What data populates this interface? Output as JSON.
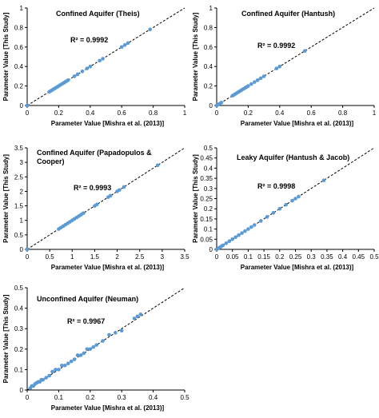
{
  "colors": {
    "marker": "#5b9bd5",
    "axis": "#000000",
    "line": "#000000"
  },
  "chart_data": [
    {
      "type": "scatter",
      "title": "Confined Aquifer (Theis)",
      "xlabel": "Parameter Value [Mishra et al. (2013)]",
      "ylabel": "Parameter Value [This Study]",
      "r2_label": "R² = 0.9992",
      "xlim": [
        0,
        1
      ],
      "ylim": [
        0,
        1
      ],
      "xticks": [
        "0",
        "0.2",
        "0.4",
        "0.6",
        "0.8",
        "1"
      ],
      "yticks": [
        "0",
        "0.2",
        "0.4",
        "0.6",
        "0.8",
        "1"
      ],
      "series": [
        {
          "x": [
            0.0,
            0.0,
            0.14,
            0.15,
            0.16,
            0.17,
            0.18,
            0.19,
            0.2,
            0.21,
            0.22,
            0.23,
            0.24,
            0.25,
            0.26,
            0.3,
            0.32,
            0.35,
            0.38,
            0.4,
            0.46,
            0.48,
            0.6,
            0.62,
            0.64,
            0.78
          ],
          "y": [
            0.0,
            0.0,
            0.14,
            0.15,
            0.16,
            0.17,
            0.18,
            0.19,
            0.2,
            0.21,
            0.22,
            0.23,
            0.24,
            0.25,
            0.26,
            0.3,
            0.32,
            0.35,
            0.38,
            0.4,
            0.46,
            0.48,
            0.6,
            0.62,
            0.64,
            0.78
          ]
        }
      ]
    },
    {
      "type": "scatter",
      "title": "Confined Aquifer (Hantush)",
      "xlabel": "Parameter Value [Mishra et al. (2013)]",
      "ylabel": "Parameter Value [This Study]",
      "r2_label": "R² = 0.9992",
      "xlim": [
        0,
        1
      ],
      "ylim": [
        0,
        1
      ],
      "xticks": [
        "0",
        "0.2",
        "0.4",
        "0.6",
        "0.8",
        "1"
      ],
      "yticks": [
        "0",
        "0.2",
        "0.4",
        "0.6",
        "0.8",
        "1"
      ],
      "series": [
        {
          "x": [
            0.0,
            0.01,
            0.02,
            0.03,
            0.1,
            0.11,
            0.12,
            0.13,
            0.14,
            0.15,
            0.16,
            0.17,
            0.18,
            0.19,
            0.2,
            0.22,
            0.24,
            0.26,
            0.28,
            0.3,
            0.38,
            0.4,
            0.56
          ],
          "y": [
            0.0,
            0.01,
            0.02,
            0.03,
            0.1,
            0.11,
            0.12,
            0.13,
            0.14,
            0.15,
            0.16,
            0.17,
            0.18,
            0.19,
            0.2,
            0.22,
            0.24,
            0.26,
            0.28,
            0.3,
            0.38,
            0.4,
            0.56
          ]
        }
      ]
    },
    {
      "type": "scatter",
      "title": "Confined Aquifer (Papadopulos & Cooper)",
      "xlabel": "Parameter Value [Mishra et al. (2013)]",
      "ylabel": "Parameter Value [This Study]",
      "r2_label": "R² = 0.9993",
      "xlim": [
        0,
        3.5
      ],
      "ylim": [
        0,
        3.5
      ],
      "xticks": [
        "0",
        "0.5",
        "1",
        "1.5",
        "2",
        "2.5",
        "3",
        "3.5"
      ],
      "yticks": [
        "0",
        "0.5",
        "1",
        "1.5",
        "2",
        "2.5",
        "3",
        "3.5"
      ],
      "series": [
        {
          "x": [
            0.0,
            0.7,
            0.75,
            0.8,
            0.85,
            0.9,
            0.95,
            1.0,
            1.05,
            1.1,
            1.15,
            1.2,
            1.25,
            1.5,
            1.55,
            1.8,
            1.85,
            2.0,
            2.05,
            2.15,
            2.9
          ],
          "y": [
            0.0,
            0.7,
            0.75,
            0.8,
            0.85,
            0.9,
            0.95,
            1.0,
            1.05,
            1.1,
            1.15,
            1.2,
            1.25,
            1.5,
            1.55,
            1.8,
            1.85,
            2.0,
            2.05,
            2.15,
            2.9
          ]
        }
      ]
    },
    {
      "type": "scatter",
      "title": "Leaky Aquifer (Hantush & Jacob)",
      "xlabel": "Parameter Value [Mishra et al. (2013)]",
      "ylabel": "Parameter Value [This Study]",
      "r2_label": "R² = 0.9998",
      "xlim": [
        0,
        0.5
      ],
      "ylim": [
        0,
        0.5
      ],
      "xticks": [
        "0",
        "0.05",
        "0.1",
        "0.15",
        "0.2",
        "0.25",
        "0.3",
        "0.35",
        "0.4",
        "0.45",
        "0.5"
      ],
      "yticks": [
        "0",
        "0.05",
        "0.1",
        "0.15",
        "0.2",
        "0.25",
        "0.3",
        "0.35",
        "0.4",
        "0.45",
        "0.5"
      ],
      "series": [
        {
          "x": [
            0.0,
            0.005,
            0.01,
            0.015,
            0.02,
            0.03,
            0.04,
            0.05,
            0.06,
            0.07,
            0.08,
            0.09,
            0.1,
            0.11,
            0.12,
            0.14,
            0.16,
            0.18,
            0.2,
            0.22,
            0.24,
            0.25,
            0.26,
            0.34
          ],
          "y": [
            0.0,
            0.005,
            0.01,
            0.015,
            0.02,
            0.03,
            0.04,
            0.05,
            0.06,
            0.07,
            0.08,
            0.09,
            0.1,
            0.11,
            0.12,
            0.14,
            0.16,
            0.18,
            0.2,
            0.22,
            0.24,
            0.25,
            0.26,
            0.34
          ]
        }
      ]
    },
    {
      "type": "scatter",
      "title": "Unconfined Aquifer (Neuman)",
      "xlabel": "Parameter Value [Mishra et al. (2013)]",
      "ylabel": "Parameter Value [This Study]",
      "r2_label": "R² = 0.9967",
      "xlim": [
        0,
        0.5
      ],
      "ylim": [
        0,
        0.5
      ],
      "xticks": [
        "0",
        "0.1",
        "0.2",
        "0.3",
        "0.4",
        "0.5"
      ],
      "yticks": [
        "0",
        "0.1",
        "0.2",
        "0.3",
        "0.4",
        "0.5"
      ],
      "series": [
        {
          "x": [
            0.01,
            0.015,
            0.02,
            0.025,
            0.03,
            0.035,
            0.04,
            0.045,
            0.05,
            0.06,
            0.07,
            0.08,
            0.09,
            0.1,
            0.11,
            0.12,
            0.13,
            0.14,
            0.15,
            0.16,
            0.17,
            0.18,
            0.19,
            0.2,
            0.21,
            0.22,
            0.24,
            0.26,
            0.28,
            0.3,
            0.34,
            0.35,
            0.36
          ],
          "y": [
            0.01,
            0.02,
            0.02,
            0.03,
            0.035,
            0.04,
            0.04,
            0.05,
            0.05,
            0.06,
            0.07,
            0.09,
            0.1,
            0.1,
            0.12,
            0.12,
            0.13,
            0.14,
            0.15,
            0.17,
            0.17,
            0.18,
            0.2,
            0.2,
            0.21,
            0.22,
            0.24,
            0.27,
            0.28,
            0.29,
            0.35,
            0.36,
            0.37
          ]
        }
      ]
    }
  ]
}
